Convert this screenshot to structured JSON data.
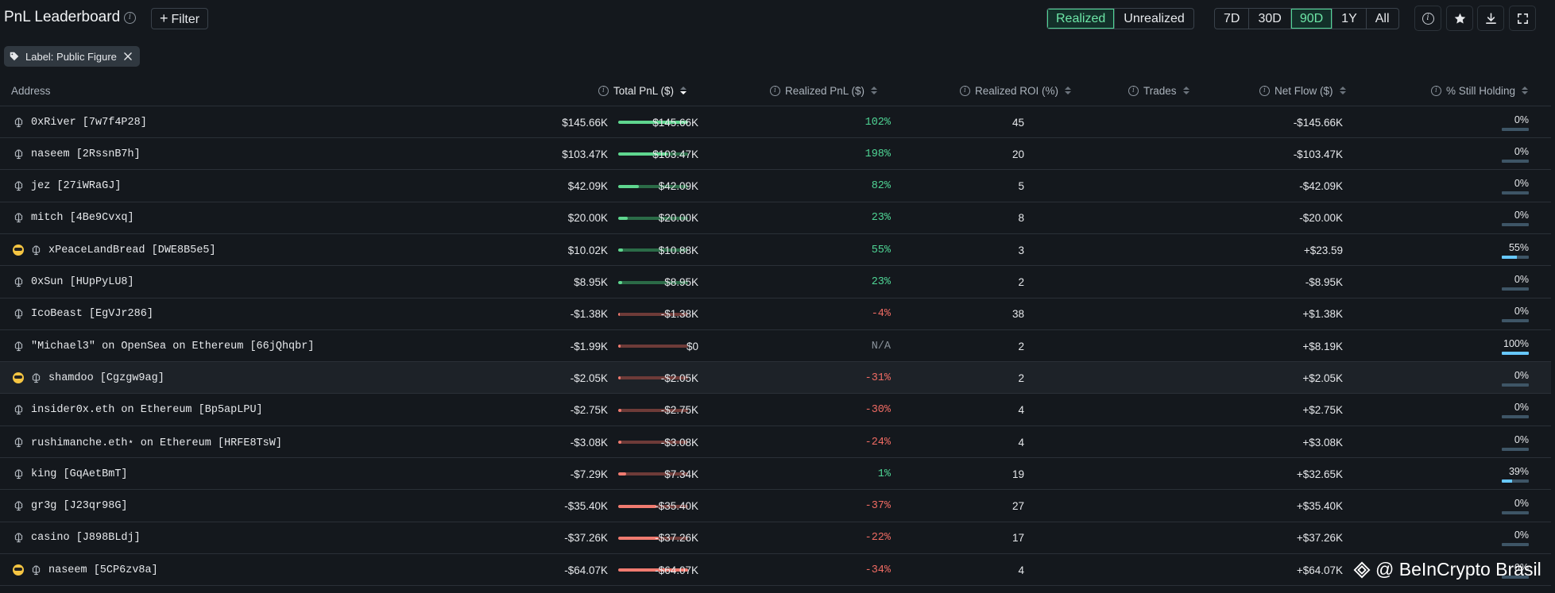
{
  "header": {
    "title": "PnL Leaderboard",
    "filter_label": "Filter",
    "mode_options": [
      "Realized",
      "Unrealized"
    ],
    "mode_active": "Realized",
    "range_options": [
      "7D",
      "30D",
      "90D",
      "1Y",
      "All"
    ],
    "range_active": "90D",
    "icons": [
      "info-icon",
      "star-icon",
      "download-icon",
      "fullscreen-icon"
    ]
  },
  "active_filter": {
    "label": "Label: Public Figure"
  },
  "table": {
    "columns": {
      "address": "Address",
      "total_pnl": "Total PnL ($)",
      "realized_pnl": "Realized PnL ($)",
      "realized_roi": "Realized ROI (%)",
      "trades": "Trades",
      "net_flow": "Net Flow ($)",
      "still_holding": "% Still Holding"
    },
    "sorted_by": "total_pnl",
    "sort_direction": "desc",
    "rows": [
      {
        "emoji": false,
        "address": "0xRiver [7w7f4P28]",
        "total_pnl": "$145.66K",
        "bar_fraction": 1.0,
        "bar_positive": true,
        "realized_pnl": "$145.66K",
        "roi": "102%",
        "roi_color": "#4fd595",
        "trades": "45",
        "net_flow": "-$145.66K",
        "holding": "0%",
        "holding_fraction": 0.0
      },
      {
        "emoji": false,
        "address": "naseem [2RssnB7h]",
        "total_pnl": "$103.47K",
        "bar_fraction": 0.71,
        "bar_positive": true,
        "realized_pnl": "$103.47K",
        "roi": "198%",
        "roi_color": "#4fd595",
        "trades": "20",
        "net_flow": "-$103.47K",
        "holding": "0%",
        "holding_fraction": 0.0
      },
      {
        "emoji": false,
        "address": "jez [27iWRaGJ]",
        "total_pnl": "$42.09K",
        "bar_fraction": 0.29,
        "bar_positive": true,
        "realized_pnl": "$42.09K",
        "roi": "82%",
        "roi_color": "#4fd595",
        "trades": "5",
        "net_flow": "-$42.09K",
        "holding": "0%",
        "holding_fraction": 0.0
      },
      {
        "emoji": false,
        "address": "mitch [4Be9Cvxq]",
        "total_pnl": "$20.00K",
        "bar_fraction": 0.14,
        "bar_positive": true,
        "realized_pnl": "$20.00K",
        "roi": "23%",
        "roi_color": "#4fd595",
        "trades": "8",
        "net_flow": "-$20.00K",
        "holding": "0%",
        "holding_fraction": 0.0
      },
      {
        "emoji": true,
        "address": "xPeaceLandBread [DWE8B5e5]",
        "total_pnl": "$10.02K",
        "bar_fraction": 0.07,
        "bar_positive": true,
        "realized_pnl": "$10.88K",
        "roi": "55%",
        "roi_color": "#4fd595",
        "trades": "3",
        "net_flow": "+$23.59",
        "holding": "55%",
        "holding_fraction": 0.55
      },
      {
        "emoji": false,
        "address": "0xSun [HUpPyLU8]",
        "total_pnl": "$8.95K",
        "bar_fraction": 0.06,
        "bar_positive": true,
        "realized_pnl": "$8.95K",
        "roi": "23%",
        "roi_color": "#4fd595",
        "trades": "2",
        "net_flow": "-$8.95K",
        "holding": "0%",
        "holding_fraction": 0.0
      },
      {
        "emoji": false,
        "address": "IcoBeast [EgVJr286]",
        "total_pnl": "-$1.38K",
        "bar_fraction": 0.02,
        "bar_positive": false,
        "realized_pnl": "-$1.38K",
        "roi": "-4%",
        "roi_color": "#ef6b63",
        "trades": "38",
        "net_flow": "+$1.38K",
        "holding": "0%",
        "holding_fraction": 0.0
      },
      {
        "emoji": false,
        "address": "\"Michael3\" on OpenSea on Ethereum [66jQhqbr]",
        "total_pnl": "-$1.99K",
        "bar_fraction": 0.03,
        "bar_positive": false,
        "realized_pnl": "$0",
        "roi": "N/A",
        "roi_color": "#8b939c",
        "trades": "2",
        "net_flow": "+$8.19K",
        "holding": "100%",
        "holding_fraction": 1.0
      },
      {
        "emoji": true,
        "address": "shamdoo [Cgzgw9ag]",
        "total_pnl": "-$2.05K",
        "bar_fraction": 0.03,
        "bar_positive": false,
        "realized_pnl": "-$2.05K",
        "roi": "-31%",
        "roi_color": "#ef6b63",
        "trades": "2",
        "net_flow": "+$2.05K",
        "holding": "0%",
        "holding_fraction": 0.0,
        "highlight": true
      },
      {
        "emoji": false,
        "address": "insider0x.eth on Ethereum [Bp5apLPU]",
        "total_pnl": "-$2.75K",
        "bar_fraction": 0.04,
        "bar_positive": false,
        "realized_pnl": "-$2.75K",
        "roi": "-30%",
        "roi_color": "#ef6b63",
        "trades": "4",
        "net_flow": "+$2.75K",
        "holding": "0%",
        "holding_fraction": 0.0
      },
      {
        "emoji": false,
        "address": "rushimanche.eth⋆ on Ethereum [HRFE8TsW]",
        "total_pnl": "-$3.08K",
        "bar_fraction": 0.05,
        "bar_positive": false,
        "realized_pnl": "-$3.08K",
        "roi": "-24%",
        "roi_color": "#ef6b63",
        "trades": "4",
        "net_flow": "+$3.08K",
        "holding": "0%",
        "holding_fraction": 0.0
      },
      {
        "emoji": false,
        "address": "king [GqAetBmT]",
        "total_pnl": "-$7.29K",
        "bar_fraction": 0.11,
        "bar_positive": false,
        "realized_pnl": "$7.34K",
        "roi": "1%",
        "roi_color": "#4fd595",
        "trades": "19",
        "net_flow": "+$32.65K",
        "holding": "39%",
        "holding_fraction": 0.39
      },
      {
        "emoji": false,
        "address": "gr3g [J23qr98G]",
        "total_pnl": "-$35.40K",
        "bar_fraction": 0.55,
        "bar_positive": false,
        "realized_pnl": "-$35.40K",
        "roi": "-37%",
        "roi_color": "#ef6b63",
        "trades": "27",
        "net_flow": "+$35.40K",
        "holding": "0%",
        "holding_fraction": 0.0
      },
      {
        "emoji": false,
        "address": "casino [J898BLdj]",
        "total_pnl": "-$37.26K",
        "bar_fraction": 0.58,
        "bar_positive": false,
        "realized_pnl": "-$37.26K",
        "roi": "-22%",
        "roi_color": "#ef6b63",
        "trades": "17",
        "net_flow": "+$37.26K",
        "holding": "0%",
        "holding_fraction": 0.0
      },
      {
        "emoji": true,
        "address": "naseem [5CP6zv8a]",
        "total_pnl": "-$64.07K",
        "bar_fraction": 1.0,
        "bar_positive": false,
        "realized_pnl": "-$64.07K",
        "roi": "-34%",
        "roi_color": "#ef6b63",
        "trades": "4",
        "net_flow": "+$64.07K",
        "holding": "0%",
        "holding_fraction": 0.0
      }
    ]
  },
  "colors": {
    "positive_bar": "#5fd68f",
    "positive_track": "#2b6b47",
    "negative_bar": "#f07b70",
    "negative_track": "#6e3b38"
  },
  "watermark": "@ BeInCrypto Brasil"
}
